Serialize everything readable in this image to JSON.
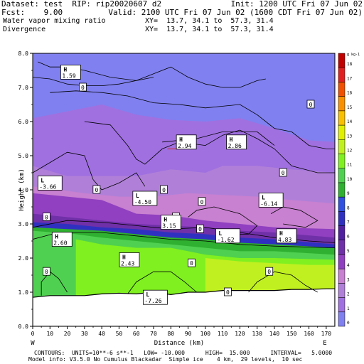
{
  "header": {
    "dataset": "Dataset: test  RIP: rip20020607 d2",
    "init": "Init: 1200 UTC Fri 07 Jun 02",
    "fcst": "Fcst:    9.00",
    "valid": "Valid: 2100 UTC Fri 07 Jun 02 (1600 CDT Fri 07 Jun 02)",
    "field1": "Water vapor mixing ratio",
    "xy1": "XY=  13.7, 34.1 to  57.3, 31.4",
    "field2": "Divergence",
    "xy2": "XY=  13.7, 34.1 to  57.3, 31.4"
  },
  "footer": {
    "line1": "CONTOURS:  UNITS=10**-6 s**-1   LOW= -10.000      HIGH=  15.000      INTERVAL=   5.0000",
    "line2": "Model info: V3.5.0 No Cumulus Blackadar  Simple ice    4 km,  29 levels,  10 sec"
  },
  "colors": {
    "below_ground": "#ffffff",
    "contour": "#000000",
    "accent_line": "#c0406a"
  },
  "chart_data": {
    "type": "heatmap",
    "xlabel": "Distance (km)",
    "ylabel": "Height (km)",
    "xlim": [
      0,
      175
    ],
    "ylim": [
      0,
      8
    ],
    "xticks": [
      0,
      10,
      20,
      30,
      40,
      50,
      60,
      70,
      80,
      90,
      100,
      110,
      120,
      130,
      140,
      150,
      160,
      170
    ],
    "yticks": [
      0,
      1,
      2,
      3,
      4,
      5,
      6,
      7,
      8
    ],
    "ytick_labels": [
      "0.0",
      "1.0",
      "2.0",
      "3.0",
      "4.0",
      "5.0",
      "6.0",
      "7.0",
      "8.0"
    ],
    "x_end_labels": [
      "W",
      "E"
    ],
    "colorbar": {
      "unit": "g kg-1",
      "levels": [
        0,
        1,
        2,
        3,
        4,
        5,
        6,
        7,
        8,
        9,
        10,
        11,
        12,
        13,
        14,
        15,
        16,
        17,
        18
      ],
      "labels": [
        "0",
        "1",
        "2",
        "3",
        "4",
        "5",
        "6",
        "7",
        "8",
        "9",
        "10",
        "11",
        "12",
        "13",
        "14",
        "15",
        "16",
        "17",
        "18"
      ],
      "colors": [
        "#8080f0",
        "#a070e0",
        "#b080d8",
        "#c880d0",
        "#9040c0",
        "#7030a8",
        "#5020a0",
        "#3030c0",
        "#3050e0",
        "#30b030",
        "#50d050",
        "#80f020",
        "#c0f020",
        "#e0f000",
        "#f8c000",
        "#f89000",
        "#f05000",
        "#e02020",
        "#c00000"
      ]
    },
    "ground": [
      [
        0,
        0.85
      ],
      [
        10,
        0.9
      ],
      [
        20,
        0.9
      ],
      [
        30,
        0.9
      ],
      [
        40,
        0.95
      ],
      [
        50,
        0.97
      ],
      [
        60,
        0.95
      ],
      [
        70,
        1.0
      ],
      [
        80,
        0.93
      ],
      [
        90,
        1.0
      ],
      [
        100,
        1.0
      ],
      [
        110,
        1.05
      ],
      [
        120,
        1.05
      ],
      [
        130,
        1.05
      ],
      [
        140,
        1.05
      ],
      [
        150,
        1.08
      ],
      [
        160,
        1.08
      ],
      [
        170,
        1.1
      ],
      [
        175,
        1.1
      ]
    ],
    "moisture_layers": [
      {
        "value": 0,
        "color": "#8080f0",
        "base": [
          [
            0,
            8
          ],
          [
            175,
            8
          ]
        ]
      },
      {
        "value": 1,
        "color": "#a070e0",
        "base": [
          [
            0,
            6.1
          ],
          [
            20,
            6.3
          ],
          [
            40,
            6.5
          ],
          [
            60,
            6.2
          ],
          [
            80,
            6.05
          ],
          [
            100,
            6.0
          ],
          [
            120,
            6.1
          ],
          [
            140,
            5.8
          ],
          [
            160,
            5.45
          ],
          [
            175,
            5.4
          ]
        ]
      },
      {
        "value": 2,
        "color": "#b080d8",
        "base": [
          [
            0,
            4.7
          ],
          [
            20,
            4.4
          ],
          [
            40,
            4.4
          ],
          [
            60,
            4.4
          ],
          [
            80,
            4.6
          ],
          [
            100,
            4.5
          ],
          [
            110,
            4.7
          ],
          [
            130,
            4.7
          ],
          [
            150,
            4.6
          ],
          [
            175,
            4.5
          ]
        ]
      },
      {
        "value": 3,
        "color": "#c880d0",
        "base": [
          [
            0,
            4.1
          ],
          [
            30,
            3.9
          ],
          [
            50,
            3.8
          ],
          [
            70,
            3.8
          ],
          [
            90,
            3.9
          ],
          [
            110,
            3.85
          ],
          [
            130,
            3.8
          ],
          [
            150,
            3.7
          ],
          [
            175,
            3.6
          ]
        ]
      },
      {
        "value": 4,
        "color": "#9040c0",
        "base": [
          [
            0,
            3.9
          ],
          [
            20,
            3.8
          ],
          [
            40,
            3.7
          ],
          [
            60,
            3.3
          ],
          [
            80,
            3.25
          ],
          [
            100,
            3.1
          ],
          [
            120,
            3.0
          ],
          [
            140,
            2.9
          ],
          [
            175,
            2.85
          ]
        ]
      },
      {
        "value": 5,
        "color": "#7030a8",
        "base": [
          [
            0,
            3.3
          ],
          [
            20,
            3.2
          ],
          [
            40,
            3.1
          ],
          [
            60,
            3.0
          ],
          [
            80,
            2.95
          ],
          [
            100,
            2.9
          ],
          [
            120,
            2.8
          ],
          [
            140,
            2.75
          ],
          [
            175,
            2.6
          ]
        ]
      },
      {
        "value": 7,
        "color": "#3030c0",
        "base": [
          [
            0,
            3.05
          ],
          [
            20,
            3.0
          ],
          [
            40,
            2.9
          ],
          [
            60,
            2.85
          ],
          [
            80,
            2.75
          ],
          [
            100,
            2.7
          ],
          [
            120,
            2.6
          ],
          [
            140,
            2.55
          ],
          [
            175,
            2.4
          ]
        ]
      },
      {
        "value": 9,
        "color": "#30b030",
        "base": [
          [
            0,
            2.9
          ],
          [
            20,
            2.85
          ],
          [
            40,
            2.8
          ],
          [
            60,
            2.7
          ],
          [
            80,
            2.6
          ],
          [
            100,
            2.55
          ],
          [
            120,
            2.45
          ],
          [
            140,
            2.4
          ],
          [
            175,
            2.3
          ]
        ]
      },
      {
        "value": 10,
        "color": "#50d050",
        "base": [
          [
            0,
            2.8
          ],
          [
            25,
            2.7
          ],
          [
            40,
            2.6
          ],
          [
            60,
            2.5
          ],
          [
            80,
            2.4
          ],
          [
            100,
            2.3
          ],
          [
            120,
            2.2
          ],
          [
            140,
            2.2
          ],
          [
            175,
            2.1
          ]
        ]
      },
      {
        "value": 11,
        "color": "#80f020",
        "base": [
          [
            25,
            0.9
          ],
          [
            25,
            2.55
          ],
          [
            40,
            2.4
          ],
          [
            60,
            2.3
          ],
          [
            80,
            2.3
          ],
          [
            100,
            2.1
          ],
          [
            120,
            2.0
          ],
          [
            140,
            2.0
          ],
          [
            175,
            1.95
          ]
        ]
      },
      {
        "value": 12,
        "color": "#c0f020",
        "base": [
          [
            100,
            1.0
          ],
          [
            100,
            2.0
          ],
          [
            120,
            1.9
          ],
          [
            140,
            1.85
          ],
          [
            160,
            1.8
          ],
          [
            175,
            1.8
          ]
        ]
      }
    ],
    "contours": [
      [
        [
          3,
          7.75
        ],
        [
          10,
          7.6
        ],
        [
          20,
          7.6
        ],
        [
          30,
          7.5
        ],
        [
          45,
          7.3
        ],
        [
          60,
          7.2
        ],
        [
          70,
          7.4
        ],
        [
          80,
          7.6
        ],
        [
          90,
          7.3
        ],
        [
          100,
          7.1
        ],
        [
          110,
          7.0
        ],
        [
          120,
          7.0
        ],
        [
          130,
          7.2
        ],
        [
          135,
          7.25
        ]
      ],
      [
        [
          0,
          7.3
        ],
        [
          10,
          7.25
        ],
        [
          20,
          7.1
        ],
        [
          30,
          7.05
        ],
        [
          40,
          7.05
        ],
        [
          50,
          7.1
        ],
        [
          60,
          7.2
        ],
        [
          70,
          7.3
        ]
      ],
      [
        [
          10,
          6.85
        ],
        [
          25,
          6.9
        ],
        [
          40,
          6.85
        ],
        [
          55,
          6.75
        ],
        [
          70,
          6.55
        ],
        [
          85,
          6.5
        ],
        [
          100,
          6.4
        ],
        [
          110,
          6.45
        ],
        [
          120,
          6.5
        ],
        [
          130,
          6.2
        ],
        [
          140,
          5.8
        ],
        [
          150,
          5.7
        ],
        [
          160,
          5.3
        ],
        [
          170,
          5.2
        ],
        [
          175,
          5.2
        ]
      ],
      [
        [
          30,
          6.0
        ],
        [
          45,
          5.9
        ],
        [
          55,
          5.3
        ],
        [
          60,
          4.9
        ],
        [
          65,
          4.75
        ],
        [
          75,
          5.2
        ],
        [
          85,
          5.4
        ],
        [
          100,
          5.3
        ],
        [
          110,
          5.6
        ],
        [
          120,
          5.75
        ],
        [
          130,
          5.5
        ],
        [
          140,
          5.2
        ],
        [
          150,
          4.7
        ],
        [
          165,
          4.5
        ],
        [
          175,
          4.5
        ]
      ],
      [
        [
          0,
          4.5
        ],
        [
          10,
          4.8
        ],
        [
          20,
          5.1
        ],
        [
          30,
          5.0
        ],
        [
          35,
          4.3
        ],
        [
          40,
          4.0
        ],
        [
          50,
          4.2
        ],
        [
          60,
          4.5
        ],
        [
          65,
          4.1
        ]
      ],
      [
        [
          0,
          2.9
        ],
        [
          20,
          3.1
        ],
        [
          40,
          3.05
        ],
        [
          60,
          2.95
        ],
        [
          80,
          2.85
        ],
        [
          100,
          2.9
        ],
        [
          120,
          2.75
        ],
        [
          140,
          2.6
        ],
        [
          160,
          2.5
        ],
        [
          175,
          2.45
        ]
      ],
      [
        [
          0,
          2.55
        ],
        [
          15,
          2.75
        ],
        [
          40,
          2.75
        ],
        [
          60,
          2.65
        ],
        [
          80,
          2.55
        ],
        [
          100,
          2.5
        ],
        [
          120,
          2.4
        ],
        [
          140,
          2.35
        ],
        [
          175,
          2.3
        ]
      ],
      [
        [
          5,
          0.9
        ],
        [
          5,
          1.3
        ],
        [
          10,
          1.6
        ],
        [
          15,
          1.4
        ],
        [
          20,
          1.0
        ]
      ],
      [
        [
          55,
          0.95
        ],
        [
          60,
          1.3
        ],
        [
          70,
          1.6
        ],
        [
          80,
          1.6
        ],
        [
          88,
          1.3
        ],
        [
          95,
          1.0
        ]
      ],
      [
        [
          125,
          1.0
        ],
        [
          130,
          1.3
        ],
        [
          140,
          1.6
        ],
        [
          150,
          1.5
        ],
        [
          158,
          1.2
        ],
        [
          165,
          1.0
        ]
      ],
      [
        [
          90,
          3.2
        ],
        [
          95,
          3.4
        ],
        [
          105,
          3.5
        ],
        [
          120,
          3.3
        ],
        [
          130,
          2.95
        ],
        [
          125,
          2.7
        ],
        [
          110,
          2.7
        ]
      ],
      [
        [
          138,
          3.3
        ],
        [
          145,
          3.5
        ],
        [
          155,
          3.4
        ],
        [
          165,
          3.1
        ],
        [
          158,
          2.9
        ],
        [
          145,
          3.0
        ]
      ],
      [
        [
          75,
          5.4
        ],
        [
          95,
          5.5
        ],
        [
          110,
          5.7
        ],
        [
          130,
          5.7
        ],
        [
          140,
          5.3
        ]
      ]
    ],
    "contour_labels": [
      {
        "text": "0",
        "x": 29,
        "y": 7.0
      },
      {
        "text": "0",
        "x": 8,
        "y": 3.2
      },
      {
        "text": "0",
        "x": 37,
        "y": 4.0
      },
      {
        "text": "0",
        "x": 76,
        "y": 4.0
      },
      {
        "text": "0",
        "x": 98,
        "y": 3.65
      },
      {
        "text": "0",
        "x": 83,
        "y": 3.2
      },
      {
        "text": "0",
        "x": 97,
        "y": 2.85
      },
      {
        "text": "0",
        "x": 145,
        "y": 4.5
      },
      {
        "text": "0",
        "x": 161,
        "y": 6.5
      },
      {
        "text": "0",
        "x": 8,
        "y": 1.6
      },
      {
        "text": "0",
        "x": 92,
        "y": 1.85
      },
      {
        "text": "0",
        "x": 137,
        "y": 1.6
      },
      {
        "text": "0",
        "x": 113,
        "y": 1.0
      }
    ],
    "extrema": [
      {
        "kind": "H",
        "value": "1.59",
        "x": 22,
        "y": 7.45
      },
      {
        "kind": "H",
        "value": "2.94",
        "x": 89,
        "y": 5.4
      },
      {
        "kind": "H",
        "value": "2.86",
        "x": 118,
        "y": 5.4
      },
      {
        "kind": "L",
        "value": "-3.66",
        "x": 10,
        "y": 4.2
      },
      {
        "kind": "L",
        "value": "-4.50",
        "x": 65,
        "y": 3.75
      },
      {
        "kind": "L",
        "value": "-6.14",
        "x": 138,
        "y": 3.7
      },
      {
        "kind": "H",
        "value": "3.15",
        "x": 80,
        "y": 3.05
      },
      {
        "kind": "L",
        "value": "-1.62",
        "x": 113,
        "y": 2.65
      },
      {
        "kind": "H",
        "value": "4.83",
        "x": 147,
        "y": 2.65
      },
      {
        "kind": "H",
        "value": "2.60",
        "x": 17,
        "y": 2.55
      },
      {
        "kind": "H",
        "value": "2.43",
        "x": 56,
        "y": 1.95
      },
      {
        "kind": "L",
        "value": "-7.26",
        "x": 71,
        "y": 0.85
      }
    ]
  }
}
